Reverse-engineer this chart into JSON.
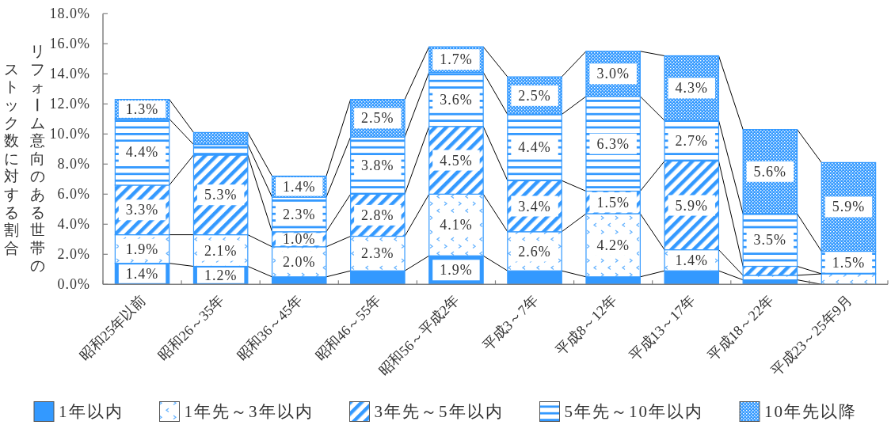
{
  "chart_data": {
    "type": "bar",
    "stacked": true,
    "ylabel": "リフォーム意向のある世帯のストック数に対する割合",
    "categories": [
      "昭和25年以前",
      "昭和26～35年",
      "昭和36～45年",
      "昭和46～55年",
      "昭和56～平成2年",
      "平成3～7年",
      "平成8～12年",
      "平成13～17年",
      "平成18～22年",
      "平成23～25年9月"
    ],
    "ylim": [
      0,
      18
    ],
    "yticks": [
      {
        "value": 0,
        "label": "0.0%"
      },
      {
        "value": 2,
        "label": "2.0%"
      },
      {
        "value": 4,
        "label": "4.0%"
      },
      {
        "value": 6,
        "label": "6.0%"
      },
      {
        "value": 8,
        "label": "8.0%"
      },
      {
        "value": 10,
        "label": "10.0%"
      },
      {
        "value": 12,
        "label": "12.0%"
      },
      {
        "value": 14,
        "label": "14.0%"
      },
      {
        "value": 16,
        "label": "16.0%"
      },
      {
        "value": 18,
        "label": "18.0%"
      }
    ],
    "legend": "bottom",
    "series": [
      {
        "name": "1年以内",
        "color": "#3399ff",
        "values": [
          1.4,
          1.2,
          0.5,
          0.9,
          1.9,
          0.9,
          0.5,
          0.9,
          0.3,
          0
        ],
        "value_labels": [
          "1.4%",
          "1.2%",
          null,
          null,
          "1.9%",
          null,
          null,
          null,
          null,
          null
        ]
      },
      {
        "name": "1年先～3年以内",
        "color": "#3399ff",
        "values": [
          1.9,
          2.1,
          2.0,
          2.3,
          4.1,
          2.6,
          4.2,
          1.4,
          0.3,
          0.7
        ],
        "value_labels": [
          "1.9%",
          "2.1%",
          "2.0%",
          "2.3%",
          "4.1%",
          "2.6%",
          "4.2%",
          "1.4%",
          null,
          null
        ]
      },
      {
        "name": "3年先～5年以内",
        "color": "#3399ff",
        "values": [
          3.3,
          5.3,
          1.0,
          2.8,
          4.5,
          3.4,
          1.5,
          5.9,
          0.6,
          0
        ],
        "value_labels": [
          "3.3%",
          "5.3%",
          "1.0%",
          "2.8%",
          "4.5%",
          "3.4%",
          "1.5%",
          "5.9%",
          null,
          null
        ]
      },
      {
        "name": "5年先～10年以内",
        "color": "#3399ff",
        "values": [
          4.4,
          0.7,
          2.3,
          3.8,
          3.6,
          4.4,
          6.3,
          2.7,
          3.5,
          1.5
        ],
        "value_labels": [
          "4.4%",
          null,
          "2.3%",
          "3.8%",
          "3.6%",
          "4.4%",
          "6.3%",
          "2.7%",
          "3.5%",
          "1.5%"
        ]
      },
      {
        "name": "10年先以降",
        "color": "#3399ff",
        "values": [
          1.3,
          0.8,
          1.4,
          2.5,
          1.7,
          2.5,
          3.0,
          4.3,
          5.6,
          5.9
        ],
        "value_labels": [
          "1.3%",
          null,
          "1.4%",
          "2.5%",
          "1.7%",
          "2.5%",
          "3.0%",
          "4.3%",
          "5.6%",
          "5.9%"
        ]
      }
    ]
  }
}
